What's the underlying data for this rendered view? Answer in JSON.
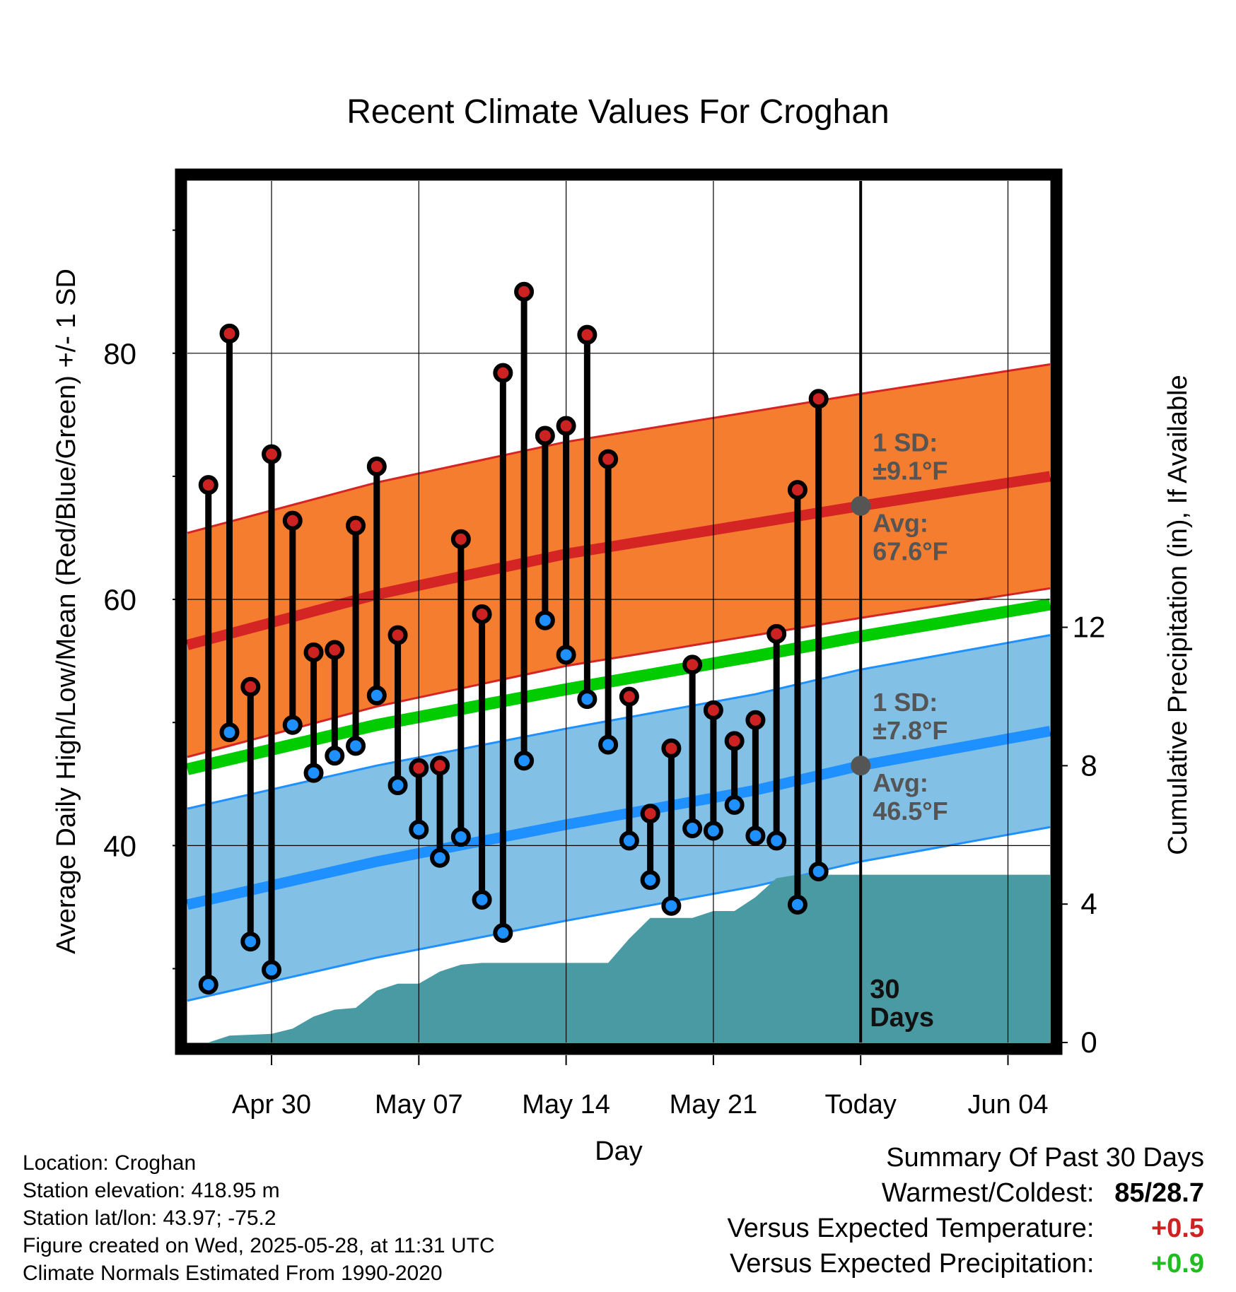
{
  "chart_data": {
    "type": "line",
    "title": "Recent Climate Values For Croghan",
    "xlabel": "Day",
    "ylabel": "Average Daily High/Low/Mean (Red/Blue/Green) +/- 1 SD",
    "y2label": "Cumulative Precipitation (in), If Available",
    "x_tick_labels": [
      "Apr 30",
      "May 07",
      "May 14",
      "May 21",
      "Today",
      "Jun 04"
    ],
    "ylim": [
      24,
      94
    ],
    "y_ticks": [
      40,
      60,
      80
    ],
    "y2lim": [
      0,
      24.9
    ],
    "y2_ticks": [
      0,
      4,
      8,
      12
    ],
    "day_range": [
      "2025-04-26",
      "2025-06-06"
    ],
    "today": "2025-05-28",
    "daily_high_low": [
      {
        "date": "2025-04-27",
        "high": 69.3,
        "low": 28.7
      },
      {
        "date": "2025-04-28",
        "high": 81.6,
        "low": 49.2
      },
      {
        "date": "2025-04-29",
        "high": 52.9,
        "low": 32.2
      },
      {
        "date": "2025-04-30",
        "high": 71.8,
        "low": 29.9
      },
      {
        "date": "2025-05-01",
        "high": 66.4,
        "low": 49.8
      },
      {
        "date": "2025-05-02",
        "high": 55.7,
        "low": 45.9
      },
      {
        "date": "2025-05-03",
        "high": 55.9,
        "low": 47.3
      },
      {
        "date": "2025-05-04",
        "high": 66.0,
        "low": 48.1
      },
      {
        "date": "2025-05-05",
        "high": 70.8,
        "low": 52.2
      },
      {
        "date": "2025-05-06",
        "high": 57.1,
        "low": 44.9
      },
      {
        "date": "2025-05-07",
        "high": 46.3,
        "low": 41.3
      },
      {
        "date": "2025-05-08",
        "high": 46.5,
        "low": 39.0
      },
      {
        "date": "2025-05-09",
        "high": 64.9,
        "low": 40.7
      },
      {
        "date": "2025-05-10",
        "high": 58.8,
        "low": 35.6
      },
      {
        "date": "2025-05-11",
        "high": 78.4,
        "low": 32.9
      },
      {
        "date": "2025-05-12",
        "high": 85.0,
        "low": 46.9
      },
      {
        "date": "2025-05-13",
        "high": 73.3,
        "low": 58.3
      },
      {
        "date": "2025-05-14",
        "high": 74.1,
        "low": 55.5
      },
      {
        "date": "2025-05-15",
        "high": 81.5,
        "low": 51.9
      },
      {
        "date": "2025-05-16",
        "high": 71.4,
        "low": 48.2
      },
      {
        "date": "2025-05-17",
        "high": 52.1,
        "low": 40.4
      },
      {
        "date": "2025-05-18",
        "high": 42.6,
        "low": 37.2
      },
      {
        "date": "2025-05-19",
        "high": 47.9,
        "low": 35.1
      },
      {
        "date": "2025-05-20",
        "high": 54.7,
        "low": 41.4
      },
      {
        "date": "2025-05-21",
        "high": 51.0,
        "low": 41.2
      },
      {
        "date": "2025-05-22",
        "high": 48.5,
        "low": 43.3
      },
      {
        "date": "2025-05-23",
        "high": 50.2,
        "low": 40.8
      },
      {
        "date": "2025-05-24",
        "high": 57.2,
        "low": 40.4
      },
      {
        "date": "2025-05-25",
        "high": 68.9,
        "low": 35.2
      },
      {
        "date": "2025-05-26",
        "high": 76.3,
        "low": 37.9
      }
    ],
    "normal_high": {
      "dates": [
        "2025-04-26",
        "2025-05-05",
        "2025-05-14",
        "2025-05-23",
        "2025-05-28",
        "2025-06-06"
      ],
      "avg": [
        56.3,
        60.4,
        63.7,
        66.2,
        67.6,
        70.0
      ],
      "sd": 9.1
    },
    "normal_low": {
      "dates": [
        "2025-04-26",
        "2025-05-05",
        "2025-05-14",
        "2025-05-23",
        "2025-05-28",
        "2025-06-06"
      ],
      "avg": [
        35.2,
        38.7,
        41.7,
        44.5,
        46.5,
        49.3
      ],
      "sd": 7.8
    },
    "normal_mean": {
      "dates": [
        "2025-04-26",
        "2025-05-05",
        "2025-05-14",
        "2025-05-23",
        "2025-05-28",
        "2025-06-06"
      ],
      "values": [
        46.2,
        49.8,
        52.7,
        55.4,
        57.0,
        59.6
      ]
    },
    "cumulative_precip": [
      {
        "date": "2025-04-26",
        "value": 0.0
      },
      {
        "date": "2025-04-27",
        "value": 0.0
      },
      {
        "date": "2025-04-28",
        "value": 0.2
      },
      {
        "date": "2025-04-30",
        "value": 0.25
      },
      {
        "date": "2025-05-01",
        "value": 0.4
      },
      {
        "date": "2025-05-02",
        "value": 0.75
      },
      {
        "date": "2025-05-03",
        "value": 0.95
      },
      {
        "date": "2025-05-04",
        "value": 1.0
      },
      {
        "date": "2025-05-05",
        "value": 1.5
      },
      {
        "date": "2025-05-06",
        "value": 1.7
      },
      {
        "date": "2025-05-07",
        "value": 1.7
      },
      {
        "date": "2025-05-08",
        "value": 2.05
      },
      {
        "date": "2025-05-09",
        "value": 2.25
      },
      {
        "date": "2025-05-10",
        "value": 2.3
      },
      {
        "date": "2025-05-16",
        "value": 2.3
      },
      {
        "date": "2025-05-17",
        "value": 3.0
      },
      {
        "date": "2025-05-18",
        "value": 3.6
      },
      {
        "date": "2025-05-19",
        "value": 3.6
      },
      {
        "date": "2025-05-20",
        "value": 3.6
      },
      {
        "date": "2025-05-21",
        "value": 3.8
      },
      {
        "date": "2025-05-22",
        "value": 3.8
      },
      {
        "date": "2025-05-23",
        "value": 4.2
      },
      {
        "date": "2025-05-24",
        "value": 4.75
      },
      {
        "date": "2025-05-25",
        "value": 4.85
      },
      {
        "date": "2025-06-06",
        "value": 4.85
      }
    ],
    "annotations": {
      "high_sd": "1 SD:",
      "high_sd_val": "±9.1°F",
      "high_avg": "Avg:",
      "high_avg_val": "67.6°F",
      "low_sd": "1 SD:",
      "low_sd_val": "±7.8°F",
      "low_avg": "Avg:",
      "low_avg_val": "46.5°F",
      "days_num": "30",
      "days_word": "Days"
    },
    "colors": {
      "high_band": "#f47d30",
      "high_line": "#d42424",
      "low_band": "#82c0e6",
      "low_line": "#1e90ff",
      "mean_line": "#00cc00",
      "precip": "#4a9aa3",
      "high_marker": "#cc2222",
      "low_marker": "#1e90ff",
      "annotation_text": "#555555"
    }
  },
  "info": {
    "location": "Location: Croghan",
    "elevation": "Station elevation: 418.95 m",
    "latlon": "Station lat/lon: 43.97; -75.2",
    "created": "Figure created on Wed, 2025-05-28, at 11:31 UTC",
    "normals": "Climate Normals Estimated From 1990-2020"
  },
  "summary": {
    "title": "Summary Of Past 30 Days",
    "warmest_label": "Warmest/Coldest:",
    "warmest_value": "85/28.7",
    "temp_label": "Versus Expected Temperature:",
    "temp_value": "+0.5",
    "temp_color": "#cc2222",
    "precip_label": "Versus Expected Precipitation:",
    "precip_value": "+0.9",
    "precip_color": "#22bb22"
  }
}
